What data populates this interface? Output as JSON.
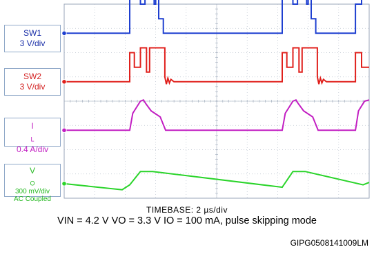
{
  "chart_data": {
    "type": "line",
    "title": "",
    "timebase_label": "TIMEBASE: 2 µs/div",
    "conditions": "VIN = 4.2 V VO = 3.3 V IO = 100 mA, pulse skipping mode",
    "figure_id": "GIPG0508141009LM",
    "x_unit": "µs",
    "x_range": [
      0,
      20
    ],
    "x_divisions": 10,
    "y_divisions": 8,
    "grid": true,
    "channels": [
      {
        "name_main": "SW1",
        "name_sub": "",
        "scale": "3 V/div",
        "coupling": "",
        "color": "#1e3fd0",
        "baseline_div": 6.8,
        "notes": "burst switching, high ~1.9 div above baseline",
        "points_us": [
          [
            0,
            0
          ],
          [
            4.3,
            0
          ],
          [
            4.3,
            1.9
          ],
          [
            5.0,
            1.9
          ],
          [
            5.0,
            1.2
          ],
          [
            5.3,
            1.2
          ],
          [
            5.3,
            1.9
          ],
          [
            5.9,
            1.9
          ],
          [
            5.9,
            1.2
          ],
          [
            6.0,
            1.2
          ],
          [
            6.0,
            1.9
          ],
          [
            6.2,
            1.9
          ],
          [
            6.2,
            0.6
          ],
          [
            6.5,
            0.6
          ],
          [
            6.5,
            0
          ],
          [
            14.3,
            0
          ],
          [
            14.3,
            1.9
          ],
          [
            15.0,
            1.9
          ],
          [
            15.0,
            1.2
          ],
          [
            15.3,
            1.2
          ],
          [
            15.3,
            1.9
          ],
          [
            15.9,
            1.9
          ],
          [
            15.9,
            1.2
          ],
          [
            16.0,
            1.2
          ],
          [
            16.0,
            1.9
          ],
          [
            16.2,
            1.9
          ],
          [
            16.2,
            0.6
          ],
          [
            16.5,
            0.6
          ],
          [
            16.5,
            0
          ],
          [
            19.1,
            0
          ],
          [
            19.1,
            1.2
          ],
          [
            19.5,
            1.2
          ],
          [
            19.5,
            1.9
          ],
          [
            20,
            1.9
          ]
        ]
      },
      {
        "name_main": "SW2",
        "name_sub": "",
        "scale": "3 V/div",
        "coupling": "",
        "color": "#e0201c",
        "baseline_div": 4.8,
        "notes": "switch node with ringing after burst",
        "points_us": [
          [
            0,
            0
          ],
          [
            4.3,
            0
          ],
          [
            4.3,
            1.2
          ],
          [
            4.6,
            1.2
          ],
          [
            4.6,
            0.6
          ],
          [
            5.0,
            0.6
          ],
          [
            5.0,
            1.4
          ],
          [
            5.4,
            1.4
          ],
          [
            5.4,
            0.4
          ],
          [
            5.6,
            0.4
          ],
          [
            5.6,
            1.4
          ],
          [
            6.6,
            1.4
          ],
          [
            6.6,
            0.2
          ],
          [
            6.7,
            -0.1
          ],
          [
            6.8,
            0.15
          ],
          [
            6.9,
            -0.05
          ],
          [
            7.0,
            0.1
          ],
          [
            7.2,
            0
          ],
          [
            14.3,
            0
          ],
          [
            14.3,
            1.2
          ],
          [
            14.6,
            1.2
          ],
          [
            14.6,
            0.6
          ],
          [
            15.0,
            0.6
          ],
          [
            15.0,
            1.4
          ],
          [
            15.4,
            1.4
          ],
          [
            15.4,
            0.4
          ],
          [
            15.6,
            0.4
          ],
          [
            15.6,
            1.4
          ],
          [
            16.6,
            1.4
          ],
          [
            16.6,
            0.2
          ],
          [
            16.7,
            -0.1
          ],
          [
            16.8,
            0.15
          ],
          [
            16.9,
            -0.05
          ],
          [
            17.0,
            0.1
          ],
          [
            17.2,
            0
          ],
          [
            19.1,
            0
          ],
          [
            19.1,
            1.2
          ],
          [
            19.5,
            1.2
          ],
          [
            19.5,
            0.6
          ],
          [
            20,
            0.6
          ]
        ]
      },
      {
        "name_main": "I",
        "name_sub": "L",
        "scale": "0.4 A/div",
        "coupling": "",
        "color": "#c21ec2",
        "baseline_div": 2.8,
        "notes": "inductor current pulses",
        "points_us": [
          [
            0,
            0
          ],
          [
            4.3,
            0
          ],
          [
            4.5,
            0.7
          ],
          [
            5.0,
            1.2
          ],
          [
            5.2,
            1.25
          ],
          [
            5.35,
            1.1
          ],
          [
            5.7,
            0.8
          ],
          [
            6.3,
            0.55
          ],
          [
            6.65,
            0
          ],
          [
            14.3,
            0
          ],
          [
            14.5,
            0.7
          ],
          [
            15.0,
            1.2
          ],
          [
            15.2,
            1.25
          ],
          [
            15.35,
            1.1
          ],
          [
            15.7,
            0.8
          ],
          [
            16.3,
            0.55
          ],
          [
            16.65,
            0
          ],
          [
            19.1,
            0
          ],
          [
            19.3,
            0.8
          ],
          [
            19.7,
            1.2
          ],
          [
            20,
            1.25
          ]
        ]
      },
      {
        "name_main": "V",
        "name_sub": "O",
        "scale": "300 mV/div",
        "coupling": "AC Coupled",
        "color": "#2ad42a",
        "baseline_div": 0.6,
        "notes": "output ripple, ramps up during burst then decays",
        "points_us": [
          [
            0,
            0
          ],
          [
            3.8,
            -0.25
          ],
          [
            4.3,
            -0.05
          ],
          [
            5.0,
            0.5
          ],
          [
            5.8,
            0.5
          ],
          [
            14.3,
            -0.15
          ],
          [
            15.0,
            0.5
          ],
          [
            15.8,
            0.5
          ],
          [
            19.6,
            -0.05
          ],
          [
            20,
            0.05
          ]
        ]
      }
    ]
  }
}
